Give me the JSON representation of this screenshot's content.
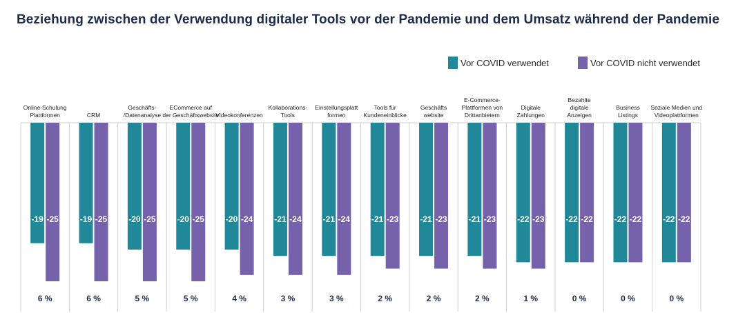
{
  "chart_data": {
    "type": "bar",
    "title": "Beziehung zwischen der Verwendung digitaler Tools vor der Pandemie und dem Umsatz während der Pandemie",
    "series": [
      {
        "name": "Vor COVID verwendet",
        "color": "#21889a",
        "values": [
          -19,
          -19,
          -20,
          -20,
          -20,
          -21,
          -21,
          -21,
          -21,
          -21,
          -22,
          -22,
          -22,
          -22
        ]
      },
      {
        "name": "Vor COVID nicht verwendet",
        "color": "#7562ab",
        "values": [
          -25,
          -25,
          -25,
          -25,
          -24,
          -24,
          -24,
          -23,
          -23,
          -23,
          -23,
          -22,
          -22,
          -22
        ]
      }
    ],
    "categories": [
      [
        "Online-Schulung",
        "Plattformen"
      ],
      [
        "CRM"
      ],
      [
        "Geschäfts-",
        "/Datenanalyse"
      ],
      [
        "ECommerce auf",
        "der Geschäftswebsite"
      ],
      [
        "Videokonferenzen"
      ],
      [
        "Kollaborations-",
        "Tools"
      ],
      [
        "Einstellungsplatt",
        "formen"
      ],
      [
        "Tools für",
        "Kundeneinblicke"
      ],
      [
        "Geschäfts",
        "website"
      ],
      [
        "E-Commerce-",
        "Plattformen von",
        "Drittanbietern"
      ],
      [
        "Digitale",
        "Zahlungen"
      ],
      [
        "Bezahlte",
        "digitale",
        "Anzeigen"
      ],
      [
        "Business",
        "Listings"
      ],
      [
        "Soziale Medien und",
        "Videoplattformen"
      ]
    ],
    "differences": [
      "6 %",
      "6 %",
      "5 %",
      "5 %",
      "4 %",
      "3 %",
      "3 %",
      "2 %",
      "2 %",
      "2 %",
      "1 %",
      "0 %",
      "0 %",
      "0 %"
    ],
    "value_labels": [
      [
        "-19",
        "-25"
      ],
      [
        "-19",
        "-25"
      ],
      [
        "-20",
        "-25"
      ],
      [
        "-20",
        "-25"
      ],
      [
        "-20",
        "-24"
      ],
      [
        "-21",
        "-24"
      ],
      [
        "-21",
        "-24"
      ],
      [
        "-21",
        "-23"
      ],
      [
        "-21",
        "-23"
      ],
      [
        "-21",
        "-23"
      ],
      [
        "-22",
        "-23"
      ],
      [
        "-22",
        "-22"
      ],
      [
        "-22",
        "-22"
      ],
      [
        "-22",
        "-22"
      ]
    ],
    "legend_position": "top-right",
    "grid": false
  }
}
